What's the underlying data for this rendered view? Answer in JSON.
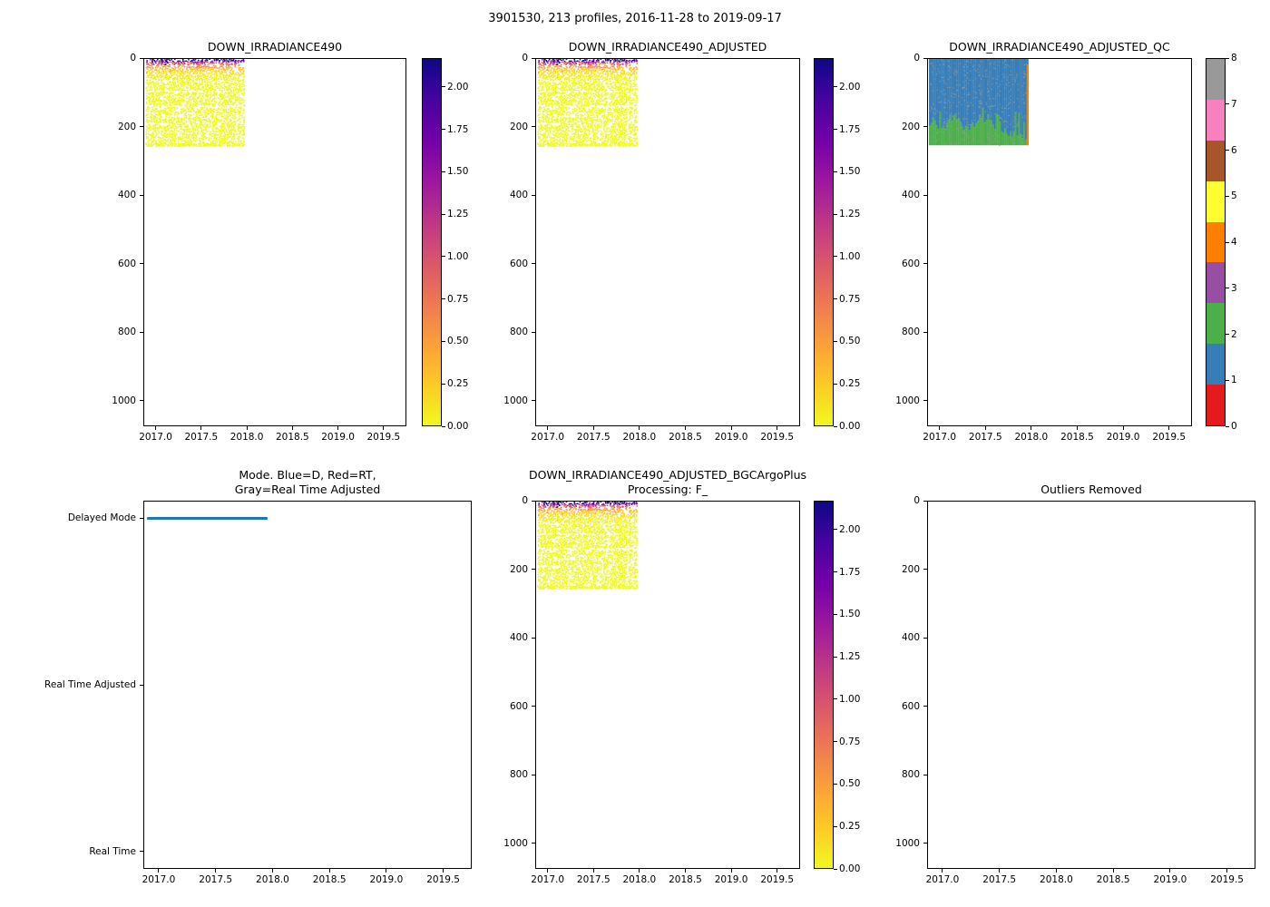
{
  "figure": {
    "suptitle": "3901530, 213 profiles, 2016-11-28 to 2019-09-17",
    "background": "#ffffff",
    "text_color": "#000000"
  },
  "palette": {
    "plasma_r_stops_bottom_to_top": [
      "#f0f921",
      "#fdca26",
      "#fb9f3a",
      "#ed7953",
      "#d8576b",
      "#bd3786",
      "#9c179e",
      "#7201a8",
      "#46039f",
      "#0d0887"
    ],
    "qc_colors_0_to_8": [
      "#e41a1c",
      "#377eb8",
      "#4daf4a",
      "#984ea3",
      "#ff7f00",
      "#ffff33",
      "#a65628",
      "#f781bf",
      "#999999"
    ],
    "mode_delayed_color": "#1f77b4",
    "spine_color": "#000000"
  },
  "chart_data": [
    {
      "id": "irradiance",
      "type": "scatter",
      "title": "DOWN_IRRADIANCE490",
      "xlim": [
        2016.865,
        2019.75
      ],
      "x_tick_values": [
        2017.0,
        2017.5,
        2018.0,
        2018.5,
        2019.0,
        2019.5
      ],
      "x_tick_labels": [
        "2017.0",
        "2017.5",
        "2018.0",
        "2018.5",
        "2019.0",
        "2019.5"
      ],
      "depth_lim": [
        0,
        1075
      ],
      "y_tick_values": [
        0,
        200,
        400,
        600,
        800,
        1000
      ],
      "y_tick_labels": [
        "0",
        "200",
        "400",
        "600",
        "800",
        "1000"
      ],
      "colorbar": {
        "cmap": "plasma_r",
        "vmin": 0.0,
        "vmax": 2.17,
        "tick_values": [
          0,
          0.25,
          0.5,
          0.75,
          1.0,
          1.25,
          1.5,
          1.75,
          2.0
        ],
        "tick_labels": [
          "0.00",
          "0.25",
          "0.50",
          "0.75",
          "1.00",
          "1.25",
          "1.50",
          "1.75",
          "2.00"
        ]
      },
      "data_block": {
        "time_range": [
          2016.885,
          2017.95
        ],
        "depth_range": [
          0,
          252
        ],
        "surface_value_max": 2.17,
        "attenuation_depth_m": 13,
        "note": "irradiance highest (dark blue ~2) at surface, decays to ~0 (yellow) below ~60 m; no data deeper than ~252 m or after ~2018.0"
      }
    },
    {
      "id": "adjusted",
      "type": "scatter",
      "title": "DOWN_IRRADIANCE490_ADJUSTED",
      "xlim": [
        2016.865,
        2019.75
      ],
      "x_tick_values": [
        2017.0,
        2017.5,
        2018.0,
        2018.5,
        2019.0,
        2019.5
      ],
      "x_tick_labels": [
        "2017.0",
        "2017.5",
        "2018.0",
        "2018.5",
        "2019.0",
        "2019.5"
      ],
      "depth_lim": [
        0,
        1075
      ],
      "y_tick_values": [
        0,
        200,
        400,
        600,
        800,
        1000
      ],
      "y_tick_labels": [
        "0",
        "200",
        "400",
        "600",
        "800",
        "1000"
      ],
      "colorbar": {
        "cmap": "plasma_r",
        "vmin": 0.0,
        "vmax": 2.17,
        "tick_values": [
          0,
          0.25,
          0.5,
          0.75,
          1.0,
          1.25,
          1.5,
          1.75,
          2.0
        ],
        "tick_labels": [
          "0.00",
          "0.25",
          "0.50",
          "0.75",
          "1.00",
          "1.25",
          "1.50",
          "1.75",
          "2.00"
        ]
      },
      "data_block": {
        "time_range": [
          2016.885,
          2017.95
        ],
        "depth_range": [
          0,
          252
        ],
        "surface_value_max": 2.17,
        "attenuation_depth_m": 13,
        "note": "adjusted field, visually identical to raw DOWN_IRRADIANCE490"
      }
    },
    {
      "id": "qc",
      "type": "heatmap",
      "title": "DOWN_IRRADIANCE490_ADJUSTED_QC",
      "xlim": [
        2016.865,
        2019.75
      ],
      "x_tick_values": [
        2017.0,
        2017.5,
        2018.0,
        2018.5,
        2019.0,
        2019.5
      ],
      "x_tick_labels": [
        "2017.0",
        "2017.5",
        "2018.0",
        "2018.5",
        "2019.0",
        "2019.5"
      ],
      "depth_lim": [
        0,
        1075
      ],
      "y_tick_values": [
        0,
        200,
        400,
        600,
        800,
        1000
      ],
      "y_tick_labels": [
        "0",
        "200",
        "400",
        "600",
        "800",
        "1000"
      ],
      "colorbar": {
        "cmap": "Set1_discrete",
        "vmin": 0,
        "vmax": 8,
        "tick_values": [
          0,
          1,
          2,
          3,
          4,
          5,
          6,
          7,
          8
        ],
        "tick_labels": [
          "0",
          "1",
          "2",
          "3",
          "4",
          "5",
          "6",
          "7",
          "8"
        ]
      },
      "data_block": {
        "time_range": [
          2016.885,
          2017.95
        ],
        "depth_range": [
          0,
          252
        ],
        "regions": [
          {
            "qc": 1,
            "color_name": "blue",
            "where": "upper part of block, 0 m down to jagged boundary ~150-240 m"
          },
          {
            "qc": 2,
            "color_name": "green",
            "where": "lower part of block, jagged top ~150-240 m down to flat bottom ~252 m"
          },
          {
            "qc": 4,
            "color_name": "orange",
            "where": "single vertical profile line at right edge of block (~2017.95), ~15-252 m"
          },
          {
            "qc": 8,
            "color_name": "gray",
            "where": "sparse speckles scattered through block"
          }
        ]
      }
    },
    {
      "id": "mode",
      "type": "line",
      "title": "Mode. Blue=D, Red=RT,\nGray=Real Time Adjusted",
      "xlim": [
        2016.865,
        2019.75
      ],
      "x_tick_values": [
        2017.0,
        2017.5,
        2018.0,
        2018.5,
        2019.0,
        2019.5
      ],
      "x_tick_labels": [
        "2017.0",
        "2017.5",
        "2018.0",
        "2018.5",
        "2019.0",
        "2019.5"
      ],
      "y_categories": [
        "Delayed Mode",
        "Real Time Adjusted",
        "Real Time"
      ],
      "series": [
        {
          "name": "Delayed Mode",
          "color": "#1f77b4",
          "x_range": [
            2016.885,
            2017.95
          ],
          "y": "Delayed Mode",
          "note": "only a blue delayed-mode segment is present"
        }
      ]
    },
    {
      "id": "bgc",
      "type": "scatter",
      "title": "DOWN_IRRADIANCE490_ADJUSTED_BGCArgoPlus\nProcessing: F_",
      "xlim": [
        2016.865,
        2019.75
      ],
      "x_tick_values": [
        2017.0,
        2017.5,
        2018.0,
        2018.5,
        2019.0,
        2019.5
      ],
      "x_tick_labels": [
        "2017.0",
        "2017.5",
        "2018.0",
        "2018.5",
        "2019.0",
        "2019.5"
      ],
      "depth_lim": [
        0,
        1075
      ],
      "y_tick_values": [
        0,
        200,
        400,
        600,
        800,
        1000
      ],
      "y_tick_labels": [
        "0",
        "200",
        "400",
        "600",
        "800",
        "1000"
      ],
      "colorbar": {
        "cmap": "plasma_r",
        "vmin": 0.0,
        "vmax": 2.17,
        "tick_values": [
          0,
          0.25,
          0.5,
          0.75,
          1.0,
          1.25,
          1.5,
          1.75,
          2.0
        ],
        "tick_labels": [
          "0.00",
          "0.25",
          "0.50",
          "0.75",
          "1.00",
          "1.25",
          "1.50",
          "1.75",
          "2.00"
        ]
      },
      "data_block": {
        "time_range": [
          2016.885,
          2017.95
        ],
        "depth_range": [
          0,
          252
        ],
        "surface_value_max": 2.17,
        "attenuation_depth_m": 13,
        "note": "same pattern as DOWN_IRRADIANCE490"
      }
    },
    {
      "id": "outliers",
      "type": "scatter",
      "title": "Outliers Removed",
      "xlim": [
        2016.865,
        2019.75
      ],
      "x_tick_values": [
        2017.0,
        2017.5,
        2018.0,
        2018.5,
        2019.0,
        2019.5
      ],
      "x_tick_labels": [
        "2017.0",
        "2017.5",
        "2018.0",
        "2018.5",
        "2019.0",
        "2019.5"
      ],
      "depth_lim": [
        0,
        1075
      ],
      "y_tick_values": [
        0,
        200,
        400,
        600,
        800,
        1000
      ],
      "y_tick_labels": [
        "0",
        "200",
        "400",
        "600",
        "800",
        "1000"
      ],
      "data_block": null,
      "note": "empty axes, no points plotted"
    }
  ]
}
